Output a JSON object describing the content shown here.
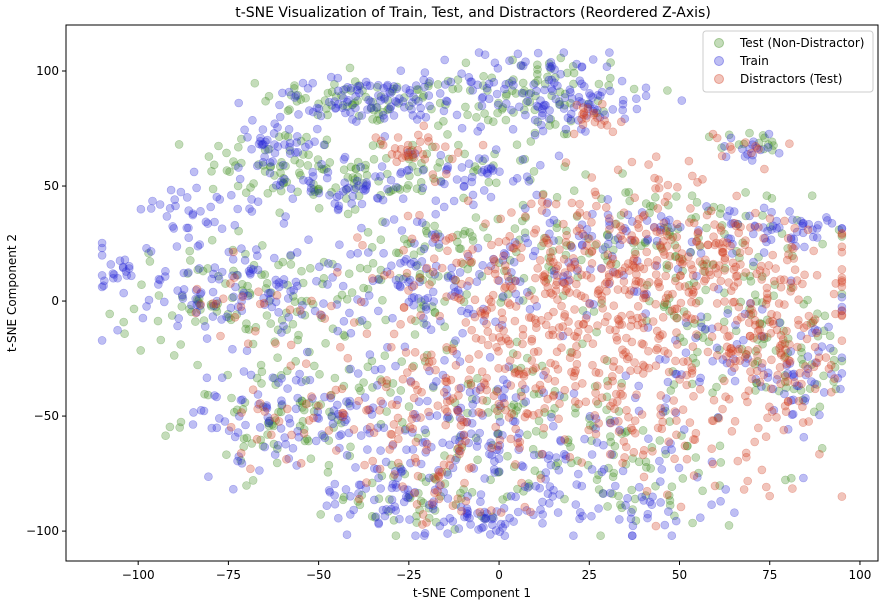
{
  "chart_data": {
    "type": "scatter",
    "title": "t-SNE Visualization of Train, Test, and Distractors (Reordered Z-Axis)",
    "xlabel": "t-SNE Component 1",
    "ylabel": "t-SNE Component 2",
    "xlim": [
      -120,
      105
    ],
    "ylim": [
      -113,
      120
    ],
    "xticks": [
      -100,
      -75,
      -50,
      -25,
      0,
      25,
      50,
      75,
      100
    ],
    "yticks": [
      -100,
      -50,
      0,
      50,
      100
    ],
    "grid": false,
    "legend_position": "top-right",
    "point_alpha": 0.3,
    "series": [
      {
        "name": "Test (Non-Distractor)",
        "color": "#3a8a1c",
        "clusters": [
          {
            "cx": -38,
            "cy": 87,
            "sx": 14,
            "sy": 5,
            "n": 60
          },
          {
            "cx": 5,
            "cy": 90,
            "sx": 18,
            "sy": 10,
            "n": 90
          },
          {
            "cx": -64,
            "cy": 60,
            "sx": 10,
            "sy": 8,
            "n": 45
          },
          {
            "cx": -42,
            "cy": 50,
            "sx": 12,
            "sy": 5,
            "n": 45
          },
          {
            "cx": -20,
            "cy": 60,
            "sx": 16,
            "sy": 8,
            "n": 50
          },
          {
            "cx": -70,
            "cy": 0,
            "sx": 18,
            "sy": 12,
            "n": 110
          },
          {
            "cx": -55,
            "cy": -50,
            "sx": 16,
            "sy": 12,
            "n": 90
          },
          {
            "cx": -20,
            "cy": 15,
            "sx": 12,
            "sy": 14,
            "n": 60
          },
          {
            "cx": 20,
            "cy": 25,
            "sx": 20,
            "sy": 15,
            "n": 70
          },
          {
            "cx": 50,
            "cy": 30,
            "sx": 18,
            "sy": 10,
            "n": 60
          },
          {
            "cx": 65,
            "cy": -10,
            "sx": 18,
            "sy": 18,
            "n": 90
          },
          {
            "cx": 5,
            "cy": -50,
            "sx": 25,
            "sy": 20,
            "n": 110
          },
          {
            "cx": -20,
            "cy": -85,
            "sx": 12,
            "sy": 8,
            "n": 45
          },
          {
            "cx": 35,
            "cy": -75,
            "sx": 20,
            "sy": 12,
            "n": 60
          },
          {
            "cx": 70,
            "cy": 68,
            "sx": 5,
            "sy": 3,
            "n": 14
          },
          {
            "cx": 85,
            "cy": -30,
            "sx": 6,
            "sy": 10,
            "n": 25
          }
        ]
      },
      {
        "name": "Train",
        "color": "#2727d6",
        "clusters": [
          {
            "cx": -38,
            "cy": 87,
            "sx": 14,
            "sy": 5,
            "n": 75
          },
          {
            "cx": 5,
            "cy": 93,
            "sx": 18,
            "sy": 9,
            "n": 110
          },
          {
            "cx": 25,
            "cy": 85,
            "sx": 8,
            "sy": 5,
            "n": 40
          },
          {
            "cx": -106,
            "cy": 15,
            "sx": 3,
            "sy": 5,
            "n": 18
          },
          {
            "cx": -82,
            "cy": 40,
            "sx": 9,
            "sy": 7,
            "n": 40
          },
          {
            "cx": -62,
            "cy": 68,
            "sx": 6,
            "sy": 5,
            "n": 40
          },
          {
            "cx": -45,
            "cy": 50,
            "sx": 12,
            "sy": 5,
            "n": 55
          },
          {
            "cx": -10,
            "cy": 55,
            "sx": 12,
            "sy": 6,
            "n": 45
          },
          {
            "cx": -70,
            "cy": 5,
            "sx": 18,
            "sy": 12,
            "n": 120
          },
          {
            "cx": -55,
            "cy": -50,
            "sx": 16,
            "sy": 12,
            "n": 110
          },
          {
            "cx": -20,
            "cy": 10,
            "sx": 12,
            "sy": 14,
            "n": 90
          },
          {
            "cx": 15,
            "cy": 20,
            "sx": 18,
            "sy": 15,
            "n": 70
          },
          {
            "cx": 55,
            "cy": 30,
            "sx": 20,
            "sy": 8,
            "n": 55
          },
          {
            "cx": 80,
            "cy": 30,
            "sx": 8,
            "sy": 5,
            "n": 30
          },
          {
            "cx": 70,
            "cy": -20,
            "sx": 15,
            "sy": 15,
            "n": 60
          },
          {
            "cx": 84,
            "cy": -36,
            "sx": 5,
            "sy": 8,
            "n": 30
          },
          {
            "cx": -10,
            "cy": -60,
            "sx": 20,
            "sy": 20,
            "n": 110
          },
          {
            "cx": 25,
            "cy": -65,
            "sx": 20,
            "sy": 15,
            "n": 80
          },
          {
            "cx": -30,
            "cy": -85,
            "sx": 10,
            "sy": 8,
            "n": 50
          },
          {
            "cx": -5,
            "cy": -95,
            "sx": 6,
            "sy": 4,
            "n": 30
          },
          {
            "cx": 30,
            "cy": -90,
            "sx": 15,
            "sy": 6,
            "n": 40
          },
          {
            "cx": 68,
            "cy": 66,
            "sx": 5,
            "sy": 3,
            "n": 16
          }
        ]
      },
      {
        "name": "Distractors (Test)",
        "color": "#d23a1e",
        "clusters": [
          {
            "cx": -25,
            "cy": 65,
            "sx": 6,
            "sy": 4,
            "n": 30
          },
          {
            "cx": 25,
            "cy": 80,
            "sx": 6,
            "sy": 4,
            "n": 20
          },
          {
            "cx": 30,
            "cy": 20,
            "sx": 22,
            "sy": 20,
            "n": 200
          },
          {
            "cx": 60,
            "cy": 15,
            "sx": 20,
            "sy": 12,
            "n": 130
          },
          {
            "cx": 80,
            "cy": -20,
            "sx": 10,
            "sy": 15,
            "n": 90
          },
          {
            "cx": 40,
            "cy": -20,
            "sx": 25,
            "sy": 18,
            "n": 200
          },
          {
            "cx": 5,
            "cy": -30,
            "sx": 18,
            "sy": 18,
            "n": 130
          },
          {
            "cx": -20,
            "cy": -50,
            "sx": 18,
            "sy": 15,
            "n": 80
          },
          {
            "cx": -5,
            "cy": 10,
            "sx": 15,
            "sy": 15,
            "n": 80
          },
          {
            "cx": -70,
            "cy": 0,
            "sx": 12,
            "sy": 8,
            "n": 25
          },
          {
            "cx": -55,
            "cy": -55,
            "sx": 15,
            "sy": 12,
            "n": 30
          },
          {
            "cx": 50,
            "cy": -60,
            "sx": 18,
            "sy": 12,
            "n": 70
          },
          {
            "cx": -20,
            "cy": -80,
            "sx": 10,
            "sy": 10,
            "n": 30
          },
          {
            "cx": 70,
            "cy": 66,
            "sx": 6,
            "sy": 4,
            "n": 10
          }
        ]
      }
    ]
  }
}
